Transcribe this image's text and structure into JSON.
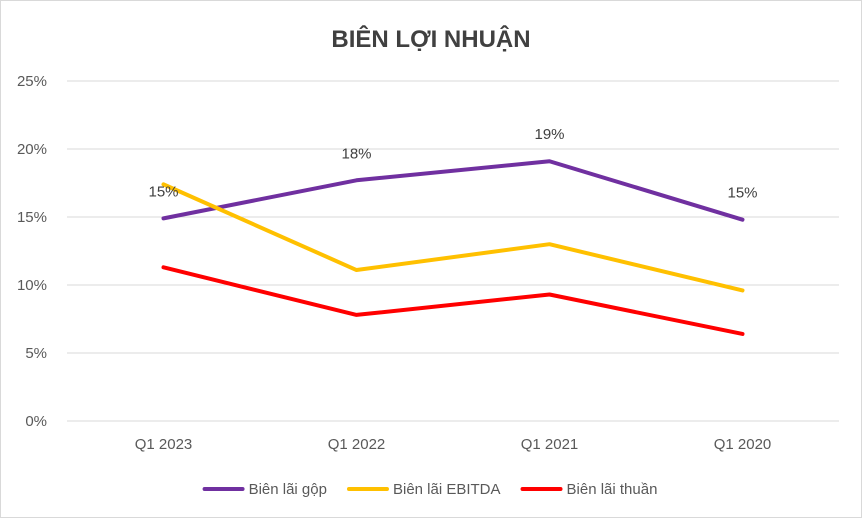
{
  "chart_data": {
    "type": "line",
    "title": "BIÊN LỢI NHUẬN",
    "categories": [
      "Q1 2023",
      "Q1 2022",
      "Q1 2021",
      "Q1 2020"
    ],
    "ylim": [
      0,
      25
    ],
    "yticks": [
      0,
      5,
      10,
      15,
      20,
      25
    ],
    "ytick_labels": [
      "0%",
      "5%",
      "10%",
      "15%",
      "20%",
      "25%"
    ],
    "grid": "horizontal",
    "legend_position": "bottom",
    "series": [
      {
        "name": "Biên lãi gộp",
        "color": "#7030A0",
        "values": [
          14.9,
          17.7,
          19.1,
          14.8
        ],
        "data_labels": [
          "15%",
          "18%",
          "19%",
          "15%"
        ]
      },
      {
        "name": "Biên lãi EBITDA",
        "color": "#FFC000",
        "values": [
          17.4,
          11.1,
          13.0,
          9.6
        ]
      },
      {
        "name": "Biên lãi thuần",
        "color": "#FF0000",
        "values": [
          11.3,
          7.8,
          9.3,
          6.4
        ]
      }
    ]
  }
}
